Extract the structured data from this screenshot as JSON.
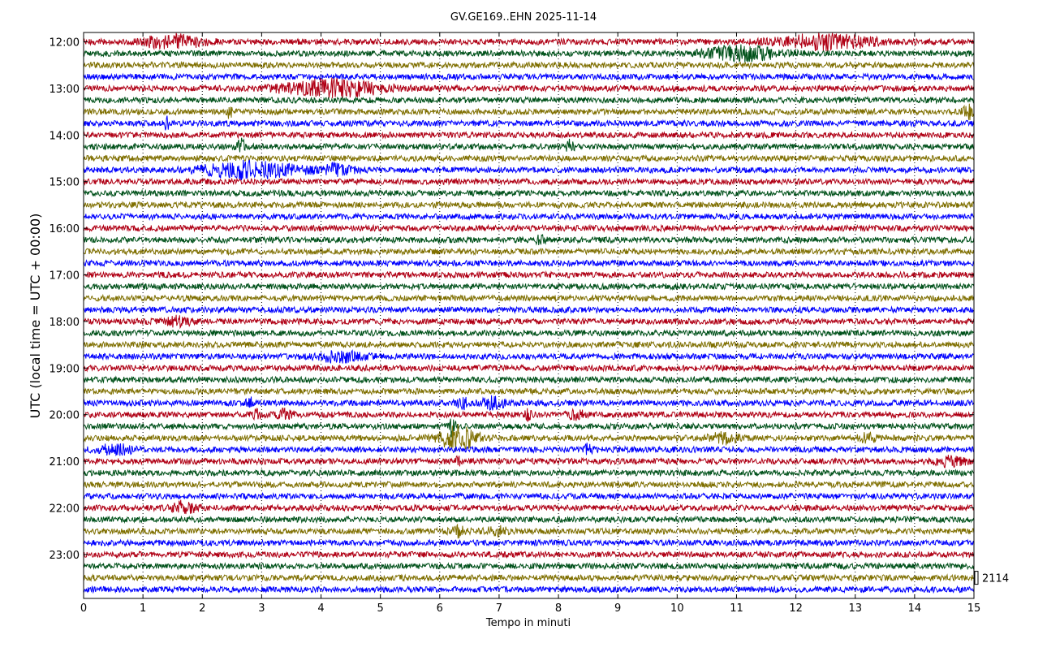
{
  "chart_data": {
    "type": "line",
    "title": "GV.GE169..EHN 2025-11-14",
    "xlabel": "Tempo in minuti",
    "ylabel": "UTC (local time = UTC + 00:00)",
    "xlim": [
      0,
      15
    ],
    "x_ticks": [
      "0",
      "1",
      "2",
      "3",
      "4",
      "5",
      "6",
      "7",
      "8",
      "9",
      "10",
      "11",
      "12",
      "13",
      "14",
      "15"
    ],
    "y_ticks": [
      "12:00",
      "13:00",
      "14:00",
      "15:00",
      "16:00",
      "17:00",
      "18:00",
      "19:00",
      "20:00",
      "21:00",
      "22:00",
      "23:00"
    ],
    "scale_label": "2114",
    "grid": "vertical dotted at each minute",
    "traces_per_hour": 4,
    "trace_start": "12:00",
    "trace_count": 48,
    "trace_minutes": 15,
    "colors": [
      "#b00015",
      "#00511a",
      "#7f6f00",
      "#0000ff"
    ],
    "events": [
      {
        "trace": 0,
        "minute": 1.5,
        "amp": 1.8,
        "dur": 0.8
      },
      {
        "trace": 0,
        "minute": 12.5,
        "amp": 2.2,
        "dur": 1.2
      },
      {
        "trace": 1,
        "minute": 11.1,
        "amp": 2.0,
        "dur": 1.0
      },
      {
        "trace": 4,
        "minute": 4.2,
        "amp": 2.5,
        "dur": 1.3
      },
      {
        "trace": 6,
        "minute": 14.95,
        "amp": 2.0,
        "dur": 0.2
      },
      {
        "trace": 6,
        "minute": 2.45,
        "amp": 1.8,
        "dur": 0.08
      },
      {
        "trace": 7,
        "minute": 1.4,
        "amp": 1.6,
        "dur": 0.08
      },
      {
        "trace": 9,
        "minute": 2.65,
        "amp": 3.0,
        "dur": 0.1
      },
      {
        "trace": 9,
        "minute": 8.2,
        "amp": 2.0,
        "dur": 0.1
      },
      {
        "trace": 11,
        "minute": 2.8,
        "amp": 2.5,
        "dur": 1.2
      },
      {
        "trace": 11,
        "minute": 4.2,
        "amp": 1.4,
        "dur": 0.5
      },
      {
        "trace": 17,
        "minute": 7.7,
        "amp": 1.8,
        "dur": 0.1
      },
      {
        "trace": 24,
        "minute": 1.6,
        "amp": 1.3,
        "dur": 0.3
      },
      {
        "trace": 27,
        "minute": 4.3,
        "amp": 1.4,
        "dur": 0.6
      },
      {
        "trace": 31,
        "minute": 2.8,
        "amp": 1.3,
        "dur": 0.1
      },
      {
        "trace": 31,
        "minute": 6.4,
        "amp": 1.3,
        "dur": 0.2
      },
      {
        "trace": 31,
        "minute": 6.9,
        "amp": 1.5,
        "dur": 0.3
      },
      {
        "trace": 32,
        "minute": 2.9,
        "amp": 1.4,
        "dur": 0.1
      },
      {
        "trace": 32,
        "minute": 3.4,
        "amp": 1.4,
        "dur": 0.2
      },
      {
        "trace": 32,
        "minute": 7.5,
        "amp": 1.5,
        "dur": 0.1
      },
      {
        "trace": 32,
        "minute": 8.3,
        "amp": 1.3,
        "dur": 0.2
      },
      {
        "trace": 33,
        "minute": 6.2,
        "amp": 2.5,
        "dur": 0.1
      },
      {
        "trace": 34,
        "minute": 6.3,
        "amp": 3.5,
        "dur": 0.5
      },
      {
        "trace": 34,
        "minute": 10.8,
        "amp": 1.4,
        "dur": 0.4
      },
      {
        "trace": 34,
        "minute": 13.2,
        "amp": 1.3,
        "dur": 0.2
      },
      {
        "trace": 35,
        "minute": 0.5,
        "amp": 1.4,
        "dur": 0.5
      },
      {
        "trace": 35,
        "minute": 8.5,
        "amp": 1.4,
        "dur": 0.1
      },
      {
        "trace": 36,
        "minute": 6.3,
        "amp": 2.0,
        "dur": 0.06
      },
      {
        "trace": 36,
        "minute": 14.6,
        "amp": 1.3,
        "dur": 0.4
      },
      {
        "trace": 40,
        "minute": 1.7,
        "amp": 1.8,
        "dur": 0.3
      },
      {
        "trace": 42,
        "minute": 6.3,
        "amp": 1.5,
        "dur": 0.2
      },
      {
        "trace": 42,
        "minute": 7.0,
        "amp": 1.3,
        "dur": 0.3
      }
    ]
  }
}
